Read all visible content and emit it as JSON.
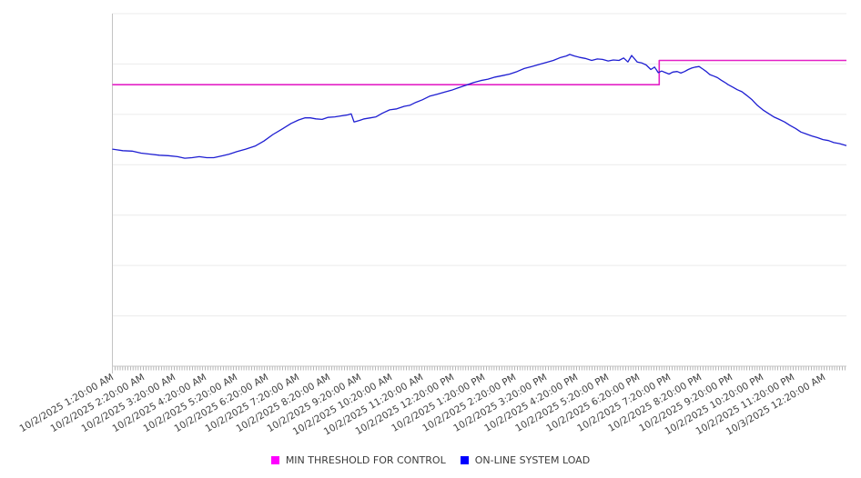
{
  "page": {
    "background": "#ffffff"
  },
  "chart_data": {
    "type": "line",
    "title": "",
    "x_axis": {
      "kind": "datetime",
      "unit_note": "hours since 10/2/2025 12:00:00 AM",
      "range": [
        1.3333,
        25.05
      ],
      "tick_interval_hours": 1,
      "minor_tick_minutes": 5,
      "label_rotation_deg": -30,
      "tick_labels": [
        "10/2/2025 1:20:00 AM",
        "10/2/2025 2:20:00 AM",
        "10/2/2025 3:20:00 AM",
        "10/2/2025 4:20:00 AM",
        "10/2/2025 5:20:00 AM",
        "10/2/2025 6:20:00 AM",
        "10/2/2025 7:20:00 AM",
        "10/2/2025 8:20:00 AM",
        "10/2/2025 9:20:00 AM",
        "10/2/2025 10:20:00 AM",
        "10/2/2025 11:20:00 AM",
        "10/2/2025 12:20:00 PM",
        "10/2/2025 1:20:00 PM",
        "10/2/2025 2:20:00 PM",
        "10/2/2025 3:20:00 PM",
        "10/2/2025 4:20:00 PM",
        "10/2/2025 5:20:00 PM",
        "10/2/2025 6:20:00 PM",
        "10/2/2025 7:20:00 PM",
        "10/2/2025 8:20:00 PM",
        "10/2/2025 9:20:00 PM",
        "10/2/2025 10:20:00 PM",
        "10/2/2025 11:20:00 PM",
        "10/3/2025 12:20:00 AM"
      ]
    },
    "y_axis": {
      "range": [
        0,
        7
      ],
      "tick_labels": [],
      "gridlines": true,
      "note": "no visible y-axis value labels; values expressed in gridline units (1 unit = 1 gridline interval)"
    },
    "grid_color": "#ebebeb",
    "axis_color": "#c4c4c4",
    "tick_color": "#9e9e9e",
    "label_color": "#3f3f3f",
    "legend": {
      "position": "bottom-center"
    },
    "series": [
      {
        "name": "MIN THRESHOLD FOR CONTROL",
        "color": "#e321c6",
        "legend_swatch": "#ff00ff",
        "line_width": 1.6,
        "points": [
          [
            1.33,
            5.59
          ],
          [
            19.0,
            5.59
          ],
          [
            19.0,
            6.07
          ],
          [
            25.05,
            6.07
          ]
        ]
      },
      {
        "name": "ON-LINE SYSTEM LOAD",
        "color": "#1e1ed2",
        "legend_swatch": "#0000ff",
        "line_width": 1.3,
        "points": [
          [
            1.33,
            4.31
          ],
          [
            1.67,
            4.28
          ],
          [
            1.97,
            4.27
          ],
          [
            2.26,
            4.23
          ],
          [
            2.55,
            4.21
          ],
          [
            2.85,
            4.19
          ],
          [
            3.14,
            4.18
          ],
          [
            3.44,
            4.16
          ],
          [
            3.67,
            4.13
          ],
          [
            3.91,
            4.14
          ],
          [
            4.14,
            4.16
          ],
          [
            4.38,
            4.14
          ],
          [
            4.61,
            4.14
          ],
          [
            4.91,
            4.18
          ],
          [
            5.11,
            4.21
          ],
          [
            5.35,
            4.26
          ],
          [
            5.64,
            4.31
          ],
          [
            5.94,
            4.37
          ],
          [
            6.23,
            4.47
          ],
          [
            6.52,
            4.6
          ],
          [
            6.82,
            4.71
          ],
          [
            7.11,
            4.82
          ],
          [
            7.35,
            4.89
          ],
          [
            7.55,
            4.93
          ],
          [
            7.73,
            4.93
          ],
          [
            7.91,
            4.91
          ],
          [
            8.11,
            4.9
          ],
          [
            8.29,
            4.94
          ],
          [
            8.52,
            4.95
          ],
          [
            8.73,
            4.97
          ],
          [
            8.94,
            4.99
          ],
          [
            9.05,
            5.01
          ],
          [
            9.14,
            4.85
          ],
          [
            9.32,
            4.88
          ],
          [
            9.47,
            4.91
          ],
          [
            9.67,
            4.93
          ],
          [
            9.85,
            4.95
          ],
          [
            10.05,
            5.02
          ],
          [
            10.29,
            5.09
          ],
          [
            10.52,
            5.11
          ],
          [
            10.76,
            5.16
          ],
          [
            10.94,
            5.18
          ],
          [
            11.14,
            5.24
          ],
          [
            11.35,
            5.29
          ],
          [
            11.58,
            5.36
          ],
          [
            11.82,
            5.4
          ],
          [
            12.05,
            5.44
          ],
          [
            12.29,
            5.48
          ],
          [
            12.52,
            5.53
          ],
          [
            12.76,
            5.58
          ],
          [
            13.0,
            5.63
          ],
          [
            13.23,
            5.67
          ],
          [
            13.47,
            5.7
          ],
          [
            13.7,
            5.74
          ],
          [
            13.94,
            5.77
          ],
          [
            14.17,
            5.8
          ],
          [
            14.41,
            5.85
          ],
          [
            14.64,
            5.91
          ],
          [
            14.88,
            5.95
          ],
          [
            15.11,
            5.99
          ],
          [
            15.35,
            6.03
          ],
          [
            15.58,
            6.07
          ],
          [
            15.82,
            6.13
          ],
          [
            16.0,
            6.16
          ],
          [
            16.11,
            6.19
          ],
          [
            16.26,
            6.16
          ],
          [
            16.44,
            6.13
          ],
          [
            16.61,
            6.11
          ],
          [
            16.82,
            6.07
          ],
          [
            17.0,
            6.1
          ],
          [
            17.17,
            6.09
          ],
          [
            17.35,
            6.06
          ],
          [
            17.52,
            6.08
          ],
          [
            17.7,
            6.07
          ],
          [
            17.85,
            6.12
          ],
          [
            17.99,
            6.04
          ],
          [
            18.11,
            6.17
          ],
          [
            18.29,
            6.04
          ],
          [
            18.44,
            6.02
          ],
          [
            18.58,
            5.98
          ],
          [
            18.73,
            5.89
          ],
          [
            18.85,
            5.94
          ],
          [
            18.97,
            5.83
          ],
          [
            19.08,
            5.86
          ],
          [
            19.2,
            5.83
          ],
          [
            19.32,
            5.8
          ],
          [
            19.44,
            5.84
          ],
          [
            19.58,
            5.85
          ],
          [
            19.7,
            5.82
          ],
          [
            19.82,
            5.85
          ],
          [
            19.94,
            5.89
          ],
          [
            20.05,
            5.92
          ],
          [
            20.17,
            5.94
          ],
          [
            20.29,
            5.95
          ],
          [
            20.41,
            5.9
          ],
          [
            20.52,
            5.85
          ],
          [
            20.64,
            5.79
          ],
          [
            20.76,
            5.76
          ],
          [
            20.88,
            5.73
          ],
          [
            21.0,
            5.68
          ],
          [
            21.11,
            5.64
          ],
          [
            21.23,
            5.59
          ],
          [
            21.38,
            5.54
          ],
          [
            21.52,
            5.49
          ],
          [
            21.67,
            5.45
          ],
          [
            21.82,
            5.38
          ],
          [
            22.0,
            5.29
          ],
          [
            22.17,
            5.18
          ],
          [
            22.35,
            5.09
          ],
          [
            22.52,
            5.02
          ],
          [
            22.7,
            4.95
          ],
          [
            22.88,
            4.9
          ],
          [
            23.05,
            4.85
          ],
          [
            23.23,
            4.78
          ],
          [
            23.41,
            4.72
          ],
          [
            23.58,
            4.65
          ],
          [
            23.76,
            4.61
          ],
          [
            23.94,
            4.57
          ],
          [
            24.11,
            4.54
          ],
          [
            24.29,
            4.5
          ],
          [
            24.47,
            4.48
          ],
          [
            24.64,
            4.44
          ],
          [
            24.82,
            4.42
          ],
          [
            25.0,
            4.39
          ],
          [
            25.05,
            4.38
          ]
        ]
      }
    ]
  }
}
